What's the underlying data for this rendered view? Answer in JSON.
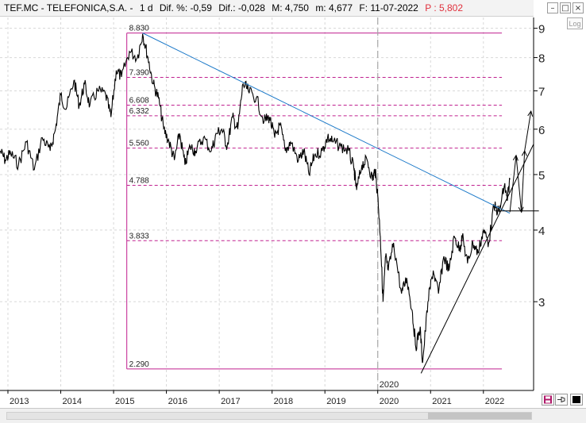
{
  "header": {
    "symbol": "TEF.MC - TELEFONICA,S.A. -",
    "timeframe": "1 d",
    "dif_pct": "Dif. %: -0,59",
    "dif": "Dif.: -0,028",
    "max": "M: 4,750",
    "min": "m: 4,677",
    "date": "F: 11-07-2022",
    "price": "P : 5,802"
  },
  "controls": {
    "log_label": "Log",
    "minimize": "–",
    "restore": "□",
    "close": "×",
    "save_icon": "floppy-disk-icon",
    "pin_icon": "pin-icon",
    "color_icon": "color-swatch-icon"
  },
  "chart_data": {
    "type": "line",
    "title": "",
    "xlabel": "",
    "ylabel": "",
    "yscale": "log",
    "ylim": [
      2.1,
      9.4
    ],
    "xlim": [
      2012.85,
      2022.95
    ],
    "x_ticks": [
      "2013",
      "2014",
      "2015",
      "2016",
      "2017",
      "2018",
      "2019",
      "2020",
      "2021",
      "2022"
    ],
    "y_ticks": [
      3,
      4,
      5,
      6,
      7,
      8,
      9
    ],
    "grid": true,
    "marker_label": "2020",
    "marker_x": 2020.0,
    "series": [
      {
        "x": [
          2012.85,
          2012.95,
          2013.05,
          2013.2,
          2013.35,
          2013.5,
          2013.65,
          2013.8,
          2013.9,
          2014.0,
          2014.1,
          2014.25,
          2014.35,
          2014.45,
          2014.55,
          2014.7,
          2014.85,
          2014.95,
          2015.05,
          2015.15,
          2015.3,
          2015.45,
          2015.55,
          2015.65,
          2015.75,
          2015.85,
          2015.95,
          2016.05,
          2016.15,
          2016.25,
          2016.35,
          2016.45,
          2016.55,
          2016.7,
          2016.85,
          2016.95,
          2017.05,
          2017.15,
          2017.25,
          2017.35,
          2017.45,
          2017.55,
          2017.7,
          2017.85,
          2017.95,
          2018.05,
          2018.15,
          2018.25,
          2018.35,
          2018.5,
          2018.6,
          2018.7,
          2018.8,
          2018.95,
          2019.05,
          2019.15,
          2019.3,
          2019.45,
          2019.55,
          2019.6,
          2019.7,
          2019.8,
          2019.9,
          2019.95,
          2020.0,
          2020.05,
          2020.1,
          2020.15,
          2020.2,
          2020.3,
          2020.45,
          2020.55,
          2020.65,
          2020.72,
          2020.8,
          2020.85,
          2020.95,
          2021.05,
          2021.15,
          2021.25,
          2021.35,
          2021.45,
          2021.55,
          2021.6,
          2021.7,
          2021.8,
          2021.9,
          2022.0,
          2022.1,
          2022.2,
          2022.3,
          2022.4,
          2022.45,
          2022.5
        ],
        "y": [
          5.5,
          5.3,
          5.45,
          5.2,
          5.7,
          5.1,
          5.8,
          5.5,
          6.0,
          6.9,
          6.5,
          7.3,
          6.6,
          7.2,
          6.6,
          7.0,
          6.9,
          6.3,
          7.6,
          7.4,
          8.2,
          8.0,
          8.8,
          8.0,
          7.2,
          6.8,
          6.0,
          5.7,
          5.3,
          5.9,
          5.2,
          5.6,
          5.5,
          5.8,
          5.5,
          5.9,
          6.0,
          5.6,
          6.3,
          6.0,
          7.2,
          7.0,
          6.8,
          6.2,
          6.3,
          5.8,
          6.1,
          5.5,
          5.7,
          5.3,
          5.5,
          5.0,
          5.4,
          5.5,
          5.8,
          5.7,
          5.6,
          5.5,
          5.1,
          4.7,
          5.2,
          5.3,
          4.9,
          5.1,
          4.6,
          3.9,
          3.0,
          3.6,
          3.4,
          3.8,
          3.1,
          3.3,
          2.9,
          2.5,
          2.7,
          2.35,
          3.0,
          3.4,
          3.1,
          3.6,
          3.4,
          3.9,
          3.7,
          3.9,
          3.5,
          3.8,
          3.65,
          4.0,
          3.8,
          4.4,
          4.3,
          4.8,
          4.5,
          4.9
        ]
      }
    ],
    "fib_levels": [
      {
        "label": "8.830",
        "value": 8.83
      },
      {
        "label": "7.390",
        "value": 7.39
      },
      {
        "label": "6.608",
        "value": 6.608
      },
      {
        "label": "6.332",
        "value": 6.332
      },
      {
        "label": "5.560",
        "value": 5.56
      },
      {
        "label": "4.788",
        "value": 4.788
      },
      {
        "label": "3.833",
        "value": 3.833
      },
      {
        "label": "2.290",
        "value": 2.29
      }
    ],
    "fib_x_range": [
      2015.25,
      2022.35
    ],
    "trendlines": [
      {
        "name": "downtrend",
        "color": "#1a78c8",
        "x": [
          2015.55,
          2022.5
        ],
        "y": [
          8.83,
          4.28
        ]
      },
      {
        "name": "uptrend",
        "color": "#000000",
        "x": [
          2020.82,
          2022.95
        ],
        "y": [
          2.25,
          5.65
        ]
      },
      {
        "name": "resistance",
        "color": "#000000",
        "x": [
          2022.22,
          2023.05
        ],
        "y": [
          4.32,
          4.32
        ]
      }
    ],
    "projection": {
      "color": "#000000",
      "x": [
        2022.5,
        2022.62,
        2022.72,
        2022.78,
        2022.9
      ],
      "y": [
        4.3,
        5.4,
        4.3,
        5.5,
        6.45
      ]
    },
    "colors": {
      "price": "#000000",
      "fib": "#c0208f",
      "grid": "#d8d8d8",
      "marker": "#a8a8a8"
    }
  }
}
